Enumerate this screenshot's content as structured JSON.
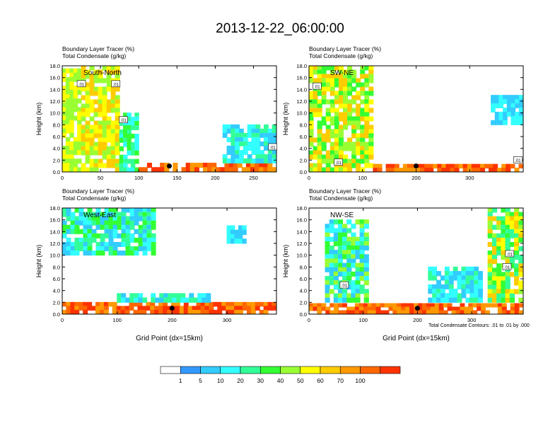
{
  "title": "2013-12-22_06:00:00",
  "colors": {
    "palette": [
      "#ffffff",
      "#3399ff",
      "#33ccff",
      "#33ffff",
      "#33ff99",
      "#33ff33",
      "#99ff33",
      "#ffff00",
      "#ffcc00",
      "#ff9900",
      "#ff6600",
      "#ff3300"
    ],
    "contour": "#000000",
    "marker": "#000000"
  },
  "chart_data": [
    {
      "type": "heatmap",
      "label": "South-North",
      "header": [
        "Boundary Layer Tracer    (%)",
        "Total Condensate    (g/kg)"
      ],
      "ylabel": "Height (km)",
      "xlabel": "",
      "xlim": [
        0,
        280
      ],
      "ylim": [
        0,
        18
      ],
      "xticks": [
        "0",
        "50",
        "100",
        "150",
        "200",
        "250"
      ],
      "xtick_values": [
        0,
        50,
        100,
        150,
        200,
        250
      ],
      "yticks": [
        "0.0",
        "2.0",
        "4.0",
        "6.0",
        "8.0",
        "10.0",
        "12.0",
        "14.0",
        "16.0",
        "18.0"
      ],
      "contour_labels": [
        {
          "text": ".01",
          "x": 25,
          "y": 14.9
        },
        {
          "text": ".01",
          "x": 70,
          "y": 14.9
        },
        {
          "text": ".01",
          "x": 80,
          "y": 8.8
        },
        {
          "text": ".01",
          "x": 275,
          "y": 4.2
        }
      ],
      "marker": {
        "x": 140,
        "y": 1.0
      },
      "regions": [
        {
          "x0": 0,
          "x1": 25,
          "y0": 0,
          "y1": 17.5,
          "level": [
            6,
            7
          ]
        },
        {
          "x0": 25,
          "x1": 75,
          "y0": 0,
          "y1": 18,
          "level": [
            6,
            8
          ]
        },
        {
          "x0": 75,
          "x1": 100,
          "y0": 0,
          "y1": 10,
          "level": [
            3,
            5
          ]
        },
        {
          "x0": 100,
          "x1": 280,
          "y0": 0,
          "y1": 1.5,
          "level": [
            9,
            11
          ]
        },
        {
          "x0": 210,
          "x1": 280,
          "y0": 1.5,
          "y1": 8,
          "level": [
            2,
            4
          ]
        }
      ]
    },
    {
      "type": "heatmap",
      "label": "SW-NE",
      "header": [
        "Boundary Layer Tracer    (%)",
        "Total Condensate    (g/kg)"
      ],
      "ylabel": "Height (km)",
      "xlabel": "",
      "xlim": [
        0,
        400
      ],
      "ylim": [
        0,
        18
      ],
      "xticks": [
        "0",
        "100",
        "200",
        "300"
      ],
      "xtick_values": [
        0,
        100,
        200,
        300
      ],
      "yticks": [
        "0.0",
        "2.0",
        "4.0",
        "6.0",
        "8.0",
        "10.0",
        "12.0",
        "14.0",
        "16.0",
        "18.0"
      ],
      "contour_labels": [
        {
          "text": ".01",
          "x": 15,
          "y": 14.5
        },
        {
          "text": ".01",
          "x": 55,
          "y": 1.6
        },
        {
          "text": ".01",
          "x": 390,
          "y": 2.0
        }
      ],
      "marker": {
        "x": 200,
        "y": 1.0
      },
      "regions": [
        {
          "x0": 0,
          "x1": 120,
          "y0": 0,
          "y1": 18,
          "level": [
            5,
            8
          ]
        },
        {
          "x0": 120,
          "x1": 400,
          "y0": 0,
          "y1": 1.3,
          "level": [
            9,
            11
          ]
        },
        {
          "x0": 340,
          "x1": 400,
          "y0": 8,
          "y1": 13,
          "level": [
            2,
            3
          ]
        }
      ]
    },
    {
      "type": "heatmap",
      "label": "West-East",
      "header": [
        "Boundary Layer Tracer    (%)",
        "Total Condensate    (g/kg)"
      ],
      "ylabel": "Height (km)",
      "xlabel": "Grid Point (dx=15km)",
      "xlim": [
        0,
        390
      ],
      "ylim": [
        0,
        18
      ],
      "xticks": [
        "0",
        "100",
        "200",
        "300"
      ],
      "xtick_values": [
        0,
        100,
        200,
        300
      ],
      "yticks": [
        "0.0",
        "2.0",
        "4.0",
        "6.0",
        "8.0",
        "10.0",
        "12.0",
        "14.0",
        "16.0",
        "18.0"
      ],
      "contour_labels": [],
      "marker": {
        "x": 200,
        "y": 1.0
      },
      "regions": [
        {
          "x0": 0,
          "x1": 170,
          "y0": 10,
          "y1": 18,
          "level": [
            2,
            5
          ]
        },
        {
          "x0": 0,
          "x1": 390,
          "y0": 0,
          "y1": 2,
          "level": [
            9,
            11
          ]
        },
        {
          "x0": 100,
          "x1": 270,
          "y0": 2,
          "y1": 3.5,
          "level": [
            2,
            4
          ]
        },
        {
          "x0": 300,
          "x1": 335,
          "y0": 12,
          "y1": 15,
          "level": [
            2,
            3
          ]
        }
      ]
    },
    {
      "type": "heatmap",
      "label": "NW-SE",
      "header": [
        "Boundary Layer Tracer    (%)",
        "Total Condensate    (g/kg)"
      ],
      "ylabel": "Height (km)",
      "xlabel": "Grid Point (dx=15km)",
      "xlim": [
        0,
        395
      ],
      "ylim": [
        0,
        18
      ],
      "xticks": [
        "0",
        "100",
        "200",
        "300"
      ],
      "xtick_values": [
        0,
        100,
        200,
        300
      ],
      "yticks": [
        "0.0",
        "2.0",
        "4.0",
        "6.0",
        "8.0",
        "10.0",
        "12.0",
        "14.0",
        "16.0",
        "18.0"
      ],
      "contour_labels": [
        {
          "text": ".01",
          "x": 65,
          "y": 4.9
        },
        {
          "text": ".01",
          "x": 370,
          "y": 10.2
        },
        {
          "text": ".01",
          "x": 365,
          "y": 8.0
        }
      ],
      "marker": {
        "x": 200,
        "y": 1.0
      },
      "regions": [
        {
          "x0": 0,
          "x1": 395,
          "y0": 0,
          "y1": 1.8,
          "level": [
            9,
            11
          ]
        },
        {
          "x0": 30,
          "x1": 110,
          "y0": 2,
          "y1": 16,
          "level": [
            2,
            6
          ]
        },
        {
          "x0": 220,
          "x1": 320,
          "y0": 2,
          "y1": 8,
          "level": [
            2,
            4
          ]
        },
        {
          "x0": 330,
          "x1": 395,
          "y0": 2,
          "y1": 18,
          "level": [
            4,
            8
          ]
        }
      ],
      "note": "Total Condensate Contours: .01 to .01 by .000"
    }
  ],
  "colorbar": {
    "labels": [
      "1",
      "5",
      "10",
      "20",
      "30",
      "40",
      "50",
      "60",
      "70",
      "100"
    ]
  }
}
